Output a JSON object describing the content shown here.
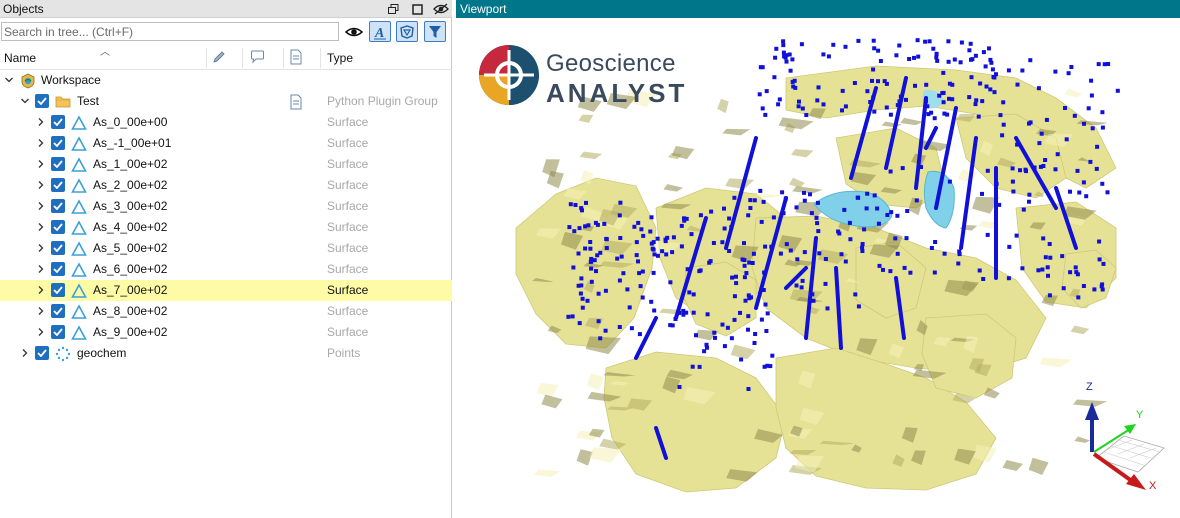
{
  "objects_panel": {
    "title": "Objects",
    "search_placeholder": "Search in tree... (Ctrl+F)",
    "columns": {
      "name": "Name",
      "type": "Type"
    },
    "header_icons": [
      "restore-window-icon",
      "maximize-icon",
      "visibility-eye-icon"
    ],
    "toolbar_icons": [
      "show-hide-eye-icon",
      "text-filter-icon",
      "shape-filter-icon",
      "funnel-filter-icon"
    ],
    "column_icons": [
      "pencil-icon",
      "comment-icon",
      "document-icon"
    ],
    "tree": {
      "workspace": {
        "label": "Workspace"
      },
      "test": {
        "label": "Test",
        "type": "Python Plugin Group"
      },
      "surfaces": [
        {
          "label": "As_0_00e+00",
          "type": "Surface",
          "selected": false
        },
        {
          "label": "As_-1_00e+01",
          "type": "Surface",
          "selected": false
        },
        {
          "label": "As_1_00e+02",
          "type": "Surface",
          "selected": false
        },
        {
          "label": "As_2_00e+02",
          "type": "Surface",
          "selected": false
        },
        {
          "label": "As_3_00e+02",
          "type": "Surface",
          "selected": false
        },
        {
          "label": "As_4_00e+02",
          "type": "Surface",
          "selected": false
        },
        {
          "label": "As_5_00e+02",
          "type": "Surface",
          "selected": false
        },
        {
          "label": "As_6_00e+02",
          "type": "Surface",
          "selected": false
        },
        {
          "label": "As_7_00e+02",
          "type": "Surface",
          "selected": true
        },
        {
          "label": "As_8_00e+02",
          "type": "Surface",
          "selected": false
        },
        {
          "label": "As_9_00e+02",
          "type": "Surface",
          "selected": false
        }
      ],
      "geochem": {
        "label": "geochem",
        "type": "Points"
      }
    }
  },
  "viewport": {
    "title": "Viewport",
    "logo": {
      "line1": "Geoscience",
      "line2": "ANALYST"
    },
    "axes": {
      "z": "Z",
      "y": "Y",
      "x": "X"
    }
  },
  "colors": {
    "header_teal": "#00768a",
    "surface_yellow": "#e6e295",
    "points_blue": "#1010d8",
    "selection_yellow": "#fdfba6",
    "checkbox_blue": "#1f6fc0"
  }
}
